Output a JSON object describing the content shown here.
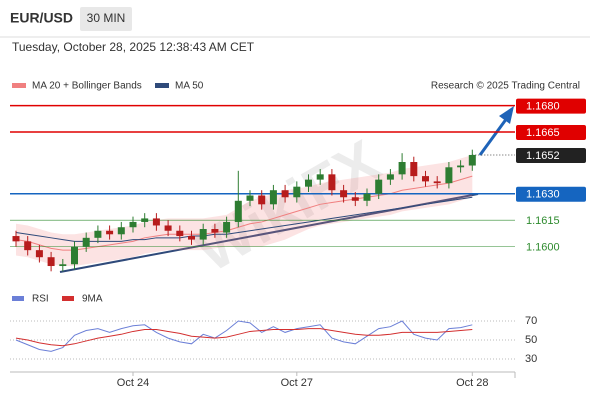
{
  "chart_data": {
    "type": "candlestick",
    "title": "EUR/USD",
    "timeframe": "30 MIN",
    "subtitle": "Tuesday, October 28, 2025 12:38:43 AM CET",
    "credit": "Research © 2025 Trading Central",
    "watermark": "WikiFX",
    "categories": [
      null,
      null,
      null,
      null,
      null,
      null,
      null,
      null,
      null,
      null,
      "Oct 24",
      null,
      null,
      null,
      null,
      null,
      null,
      null,
      null,
      null,
      null,
      null,
      null,
      null,
      "Oct 27",
      null,
      null,
      null,
      null,
      null,
      null,
      null,
      null,
      null,
      null,
      null,
      null,
      null,
      null,
      "Oct 28"
    ],
    "open": [
      1.1606,
      1.1603,
      1.1598,
      1.1594,
      1.1589,
      1.159,
      1.16,
      1.1605,
      1.1609,
      1.1607,
      1.1611,
      1.1614,
      1.1616,
      1.1612,
      1.1609,
      1.1606,
      1.1604,
      1.161,
      1.1608,
      1.1614,
      1.1626,
      1.1629,
      1.1624,
      1.1632,
      1.1628,
      1.1634,
      1.1638,
      1.1641,
      1.1632,
      1.1628,
      1.1626,
      1.163,
      1.1638,
      1.1641,
      1.1648,
      1.164,
      1.1637,
      1.1636,
      1.1645,
      1.1646
    ],
    "high": [
      1.1609,
      1.1606,
      1.1601,
      1.1597,
      1.1593,
      1.1603,
      1.1608,
      1.1612,
      1.1612,
      1.1614,
      1.1617,
      1.1619,
      1.1619,
      1.1615,
      1.1612,
      1.1609,
      1.1613,
      1.1613,
      1.1617,
      1.1643,
      1.1632,
      1.1632,
      1.1635,
      1.1635,
      1.1637,
      1.1641,
      1.1644,
      1.1644,
      1.1635,
      1.1631,
      1.1633,
      1.1641,
      1.1644,
      1.1653,
      1.1651,
      1.1643,
      1.164,
      1.1648,
      1.1649,
      1.1655
    ],
    "low": [
      1.16,
      1.1595,
      1.1591,
      1.1586,
      1.1586,
      1.1587,
      1.1597,
      1.1602,
      1.1604,
      1.1604,
      1.1608,
      1.1611,
      1.1609,
      1.1606,
      1.1603,
      1.1601,
      1.1601,
      1.1605,
      1.1605,
      1.1611,
      1.1623,
      1.1621,
      1.1621,
      1.1625,
      1.1625,
      1.1631,
      1.1635,
      1.1629,
      1.1625,
      1.1623,
      1.1623,
      1.1627,
      1.1635,
      1.1638,
      1.1637,
      1.1634,
      1.1633,
      1.1633,
      1.1642,
      1.1643
    ],
    "close": [
      1.1603,
      1.1598,
      1.1594,
      1.1589,
      1.159,
      1.16,
      1.1605,
      1.1609,
      1.1607,
      1.1611,
      1.1614,
      1.1616,
      1.1612,
      1.1609,
      1.1606,
      1.1604,
      1.161,
      1.1608,
      1.1614,
      1.1626,
      1.1629,
      1.1624,
      1.1632,
      1.1628,
      1.1634,
      1.1638,
      1.1641,
      1.1632,
      1.1628,
      1.1626,
      1.163,
      1.1638,
      1.1641,
      1.1648,
      1.164,
      1.1637,
      1.1636,
      1.1645,
      1.1646,
      1.1652
    ],
    "up_color": "#2e7d32",
    "down_color": "#b71c1c",
    "ylim": [
      1.1572,
      1.1686
    ],
    "overlays": [
      {
        "name": "MA 20 + Bollinger Bands",
        "color": "#f08080",
        "values": [
          1.1604,
          1.1603,
          1.1601,
          1.1599,
          1.1598,
          1.1598,
          1.1599,
          1.16,
          1.1601,
          1.1602,
          1.1603,
          1.1605,
          1.1606,
          1.1607,
          1.1607,
          1.1607,
          1.1607,
          1.1608,
          1.1609,
          1.1611,
          1.1613,
          1.1614,
          1.1616,
          1.1618,
          1.162,
          1.1622,
          1.1624,
          1.1625,
          1.1626,
          1.1627,
          1.1628,
          1.1629,
          1.163,
          1.1632,
          1.1633,
          1.1634,
          1.1635,
          1.1636,
          1.1638,
          1.164
        ],
        "upper": [
          1.1613,
          1.1612,
          1.161,
          1.1608,
          1.1607,
          1.1607,
          1.1608,
          1.1609,
          1.161,
          1.1611,
          1.1612,
          1.1614,
          1.1615,
          1.1616,
          1.1616,
          1.1616,
          1.1616,
          1.1617,
          1.1618,
          1.1622,
          1.1626,
          1.1628,
          1.163,
          1.1632,
          1.1633,
          1.1634,
          1.1636,
          1.1637,
          1.1638,
          1.1639,
          1.164,
          1.1641,
          1.1642,
          1.1644,
          1.1645,
          1.1646,
          1.1647,
          1.1648,
          1.165,
          1.1652
        ],
        "lower": [
          1.1595,
          1.1594,
          1.1592,
          1.159,
          1.1589,
          1.1589,
          1.159,
          1.1591,
          1.1592,
          1.1593,
          1.1594,
          1.1596,
          1.1597,
          1.1598,
          1.1598,
          1.1598,
          1.1598,
          1.1599,
          1.16,
          1.16,
          1.16,
          1.16,
          1.1602,
          1.1604,
          1.1607,
          1.161,
          1.1612,
          1.1613,
          1.1614,
          1.1615,
          1.1616,
          1.1617,
          1.1618,
          1.162,
          1.1621,
          1.1622,
          1.1623,
          1.1624,
          1.1626,
          1.1628
        ]
      },
      {
        "name": "MA 50",
        "color": "#2f4a7a",
        "values": [
          1.1608,
          1.1607,
          1.1606,
          1.1605,
          1.1604,
          1.1603,
          1.1603,
          1.1603,
          1.1603,
          1.1603,
          1.1604,
          1.1604,
          1.1605,
          1.1605,
          1.1605,
          1.1606,
          1.1606,
          1.1607,
          1.1607,
          1.1608,
          1.1609,
          1.161,
          1.1611,
          1.1612,
          1.1613,
          1.1614,
          1.1615,
          1.1616,
          1.1617,
          1.1618,
          1.1619,
          1.162,
          1.1621,
          1.1622,
          1.1623,
          1.1624,
          1.1625,
          1.1626,
          1.1627,
          1.1628
        ]
      }
    ],
    "levels": [
      {
        "value": 1.168,
        "label": "1.1680",
        "color": "#e00000",
        "style": "box"
      },
      {
        "value": 1.1665,
        "label": "1.1665",
        "color": "#e00000",
        "style": "box"
      },
      {
        "value": 1.1652,
        "label": "1.1652",
        "color": "#222222",
        "style": "current"
      },
      {
        "value": 1.163,
        "label": "1.1630",
        "color": "#1565c0",
        "style": "box"
      },
      {
        "value": 1.1615,
        "label": "1.1615",
        "color": "#2e8b2e",
        "style": "text"
      },
      {
        "value": 1.16,
        "label": "1.1600",
        "color": "#2e8b2e",
        "style": "text"
      }
    ],
    "rsi": {
      "ylim": [
        20,
        80
      ],
      "yticks": [
        30,
        50,
        70
      ],
      "series": [
        {
          "name": "RSI",
          "color": "#6b7fd7",
          "values": [
            50,
            45,
            40,
            38,
            42,
            55,
            60,
            62,
            58,
            62,
            65,
            66,
            58,
            52,
            48,
            46,
            56,
            52,
            60,
            70,
            68,
            58,
            64,
            58,
            62,
            64,
            66,
            52,
            48,
            46,
            54,
            62,
            64,
            70,
            56,
            52,
            50,
            62,
            63,
            66
          ]
        },
        {
          "name": "9MA",
          "color": "#d32f2f",
          "values": [
            52,
            50,
            47,
            45,
            44,
            46,
            49,
            52,
            54,
            56,
            59,
            61,
            61,
            59,
            57,
            54,
            53,
            52,
            53,
            56,
            59,
            60,
            61,
            61,
            61,
            62,
            62,
            60,
            58,
            56,
            55,
            55,
            56,
            58,
            58,
            58,
            58,
            59,
            60,
            61
          ]
        }
      ]
    }
  }
}
